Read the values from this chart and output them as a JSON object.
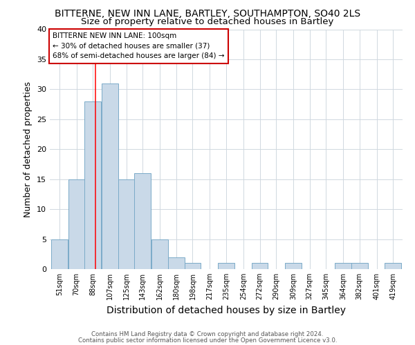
{
  "title": "BITTERNE, NEW INN LANE, BARTLEY, SOUTHAMPTON, SO40 2LS",
  "subtitle": "Size of property relative to detached houses in Bartley",
  "xlabel": "Distribution of detached houses by size in Bartley",
  "ylabel": "Number of detached properties",
  "footnote1": "Contains HM Land Registry data © Crown copyright and database right 2024.",
  "footnote2": "Contains public sector information licensed under the Open Government Licence v3.0.",
  "bins": [
    51,
    70,
    88,
    107,
    125,
    143,
    162,
    180,
    198,
    217,
    235,
    254,
    272,
    290,
    309,
    327,
    345,
    364,
    382,
    401,
    419
  ],
  "values": [
    5,
    15,
    28,
    31,
    15,
    16,
    5,
    2,
    1,
    0,
    1,
    0,
    1,
    0,
    1,
    0,
    0,
    1,
    1,
    0,
    1
  ],
  "bar_color": "#c9d9e8",
  "bar_edge_color": "#7aaac8",
  "red_line_x": 100,
  "ylim": [
    0,
    40
  ],
  "annotation_title": "BITTERNE NEW INN LANE: 100sqm",
  "annotation_line1": "← 30% of detached houses are smaller (37)",
  "annotation_line2": "68% of semi-detached houses are larger (84) →",
  "annotation_box_color": "#ffffff",
  "annotation_box_edge": "#cc0000",
  "grid_color": "#d0d8e0",
  "title_fontsize": 10,
  "subtitle_fontsize": 9.5,
  "xlabel_fontsize": 10,
  "ylabel_fontsize": 9
}
